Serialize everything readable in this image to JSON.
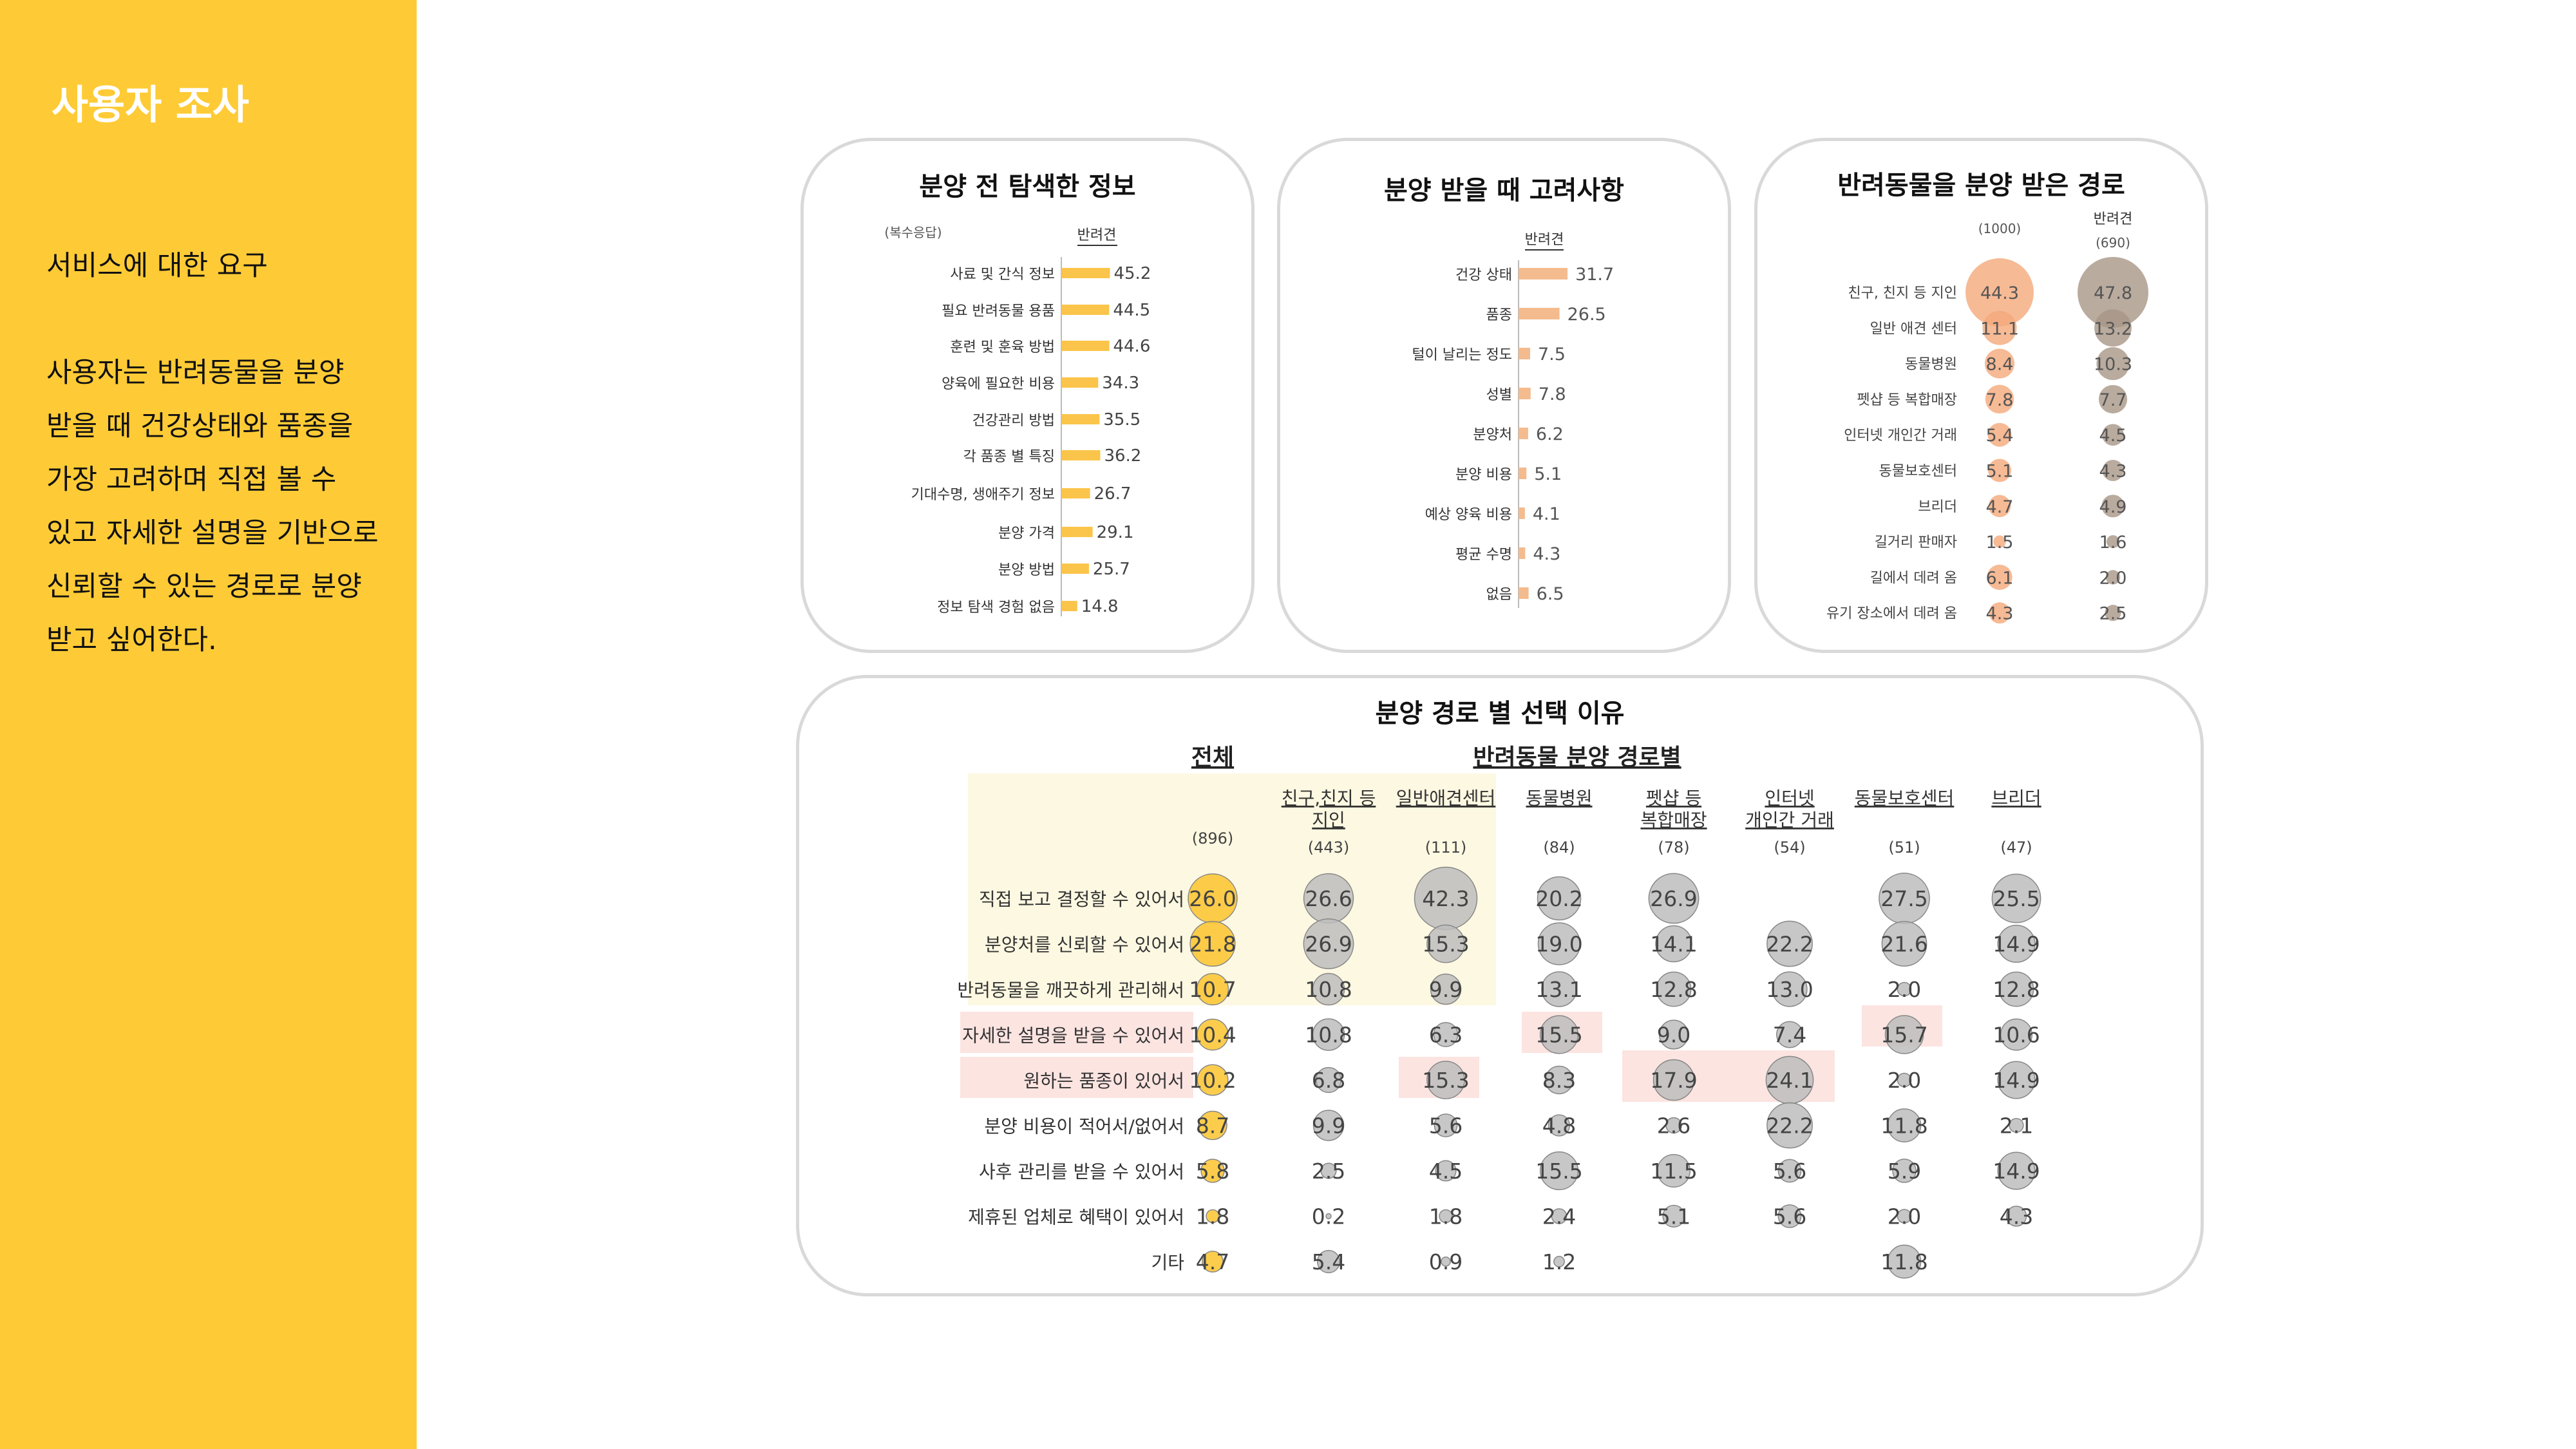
{
  "sidebar": {
    "title": "사용자 조사",
    "subtitle": "서비스에 대한 요구",
    "body_lines": [
      "사용자는 반려동물을 분양",
      "받을 때 건강상태와 품종을",
      "가장 고려하며 직접 볼 수",
      "있고 자세한 설명을 기반으로",
      "신뢰할 수 있는 경로로 분양",
      "받고 싶어한다."
    ]
  },
  "colors": {
    "sidebar_bg": "#FECB36",
    "bar_yellow": "#FBC44A",
    "bar_peach": "#F4BB8E",
    "bubble_peach": "#F4A97A",
    "bubble_brown": "#A79686",
    "bubble_yellow": "#FBC42E",
    "bubble_gray": "#BDBDBD",
    "highlight_yellow": "#FDF8E1",
    "highlight_pink": "#FCE4E1"
  },
  "chart_data": [
    {
      "type": "bar",
      "title": "분양 전 탐색한 정보",
      "note": "(복수응답)",
      "series_label": "반려견",
      "categories": [
        "사료 및 간식 정보",
        "필요 반려동물 용품",
        "훈련 및 훈육 방법",
        "양육에 필요한 비용",
        "건강관리 방법",
        "각 품종 별 특징",
        "기대수명, 생애주기 정보",
        "분양 가격",
        "분양 방법",
        "정보 탐색 경험 없음"
      ],
      "values": [
        45.2,
        44.5,
        44.6,
        34.3,
        35.5,
        36.2,
        26.7,
        29.1,
        25.7,
        14.8
      ],
      "value_labels": [
        "45.2",
        "44.5",
        "44.6",
        "34.3",
        "35.5",
        "36.2",
        "26.7",
        "29.1",
        "25.7",
        "14.8"
      ]
    },
    {
      "type": "bar",
      "title": "분양 받을 때 고려사항",
      "series_label": "반려견",
      "categories": [
        "건강 상태",
        "품종",
        "털이 날리는 정도",
        "성별",
        "분양처",
        "분양 비용",
        "예상 양육 비용",
        "평균 수명",
        "없음"
      ],
      "values": [
        31.7,
        26.5,
        7.5,
        7.8,
        6.2,
        5.1,
        4.1,
        4.3,
        6.5
      ],
      "value_labels": [
        "31.7",
        "26.5",
        "7.5",
        "7.8",
        "6.2",
        "5.1",
        "4.1",
        "4.3",
        "6.5"
      ]
    },
    {
      "type": "scatter",
      "title": "반려동물을 분양 받은 경로",
      "columns": [
        {
          "header": "",
          "n": "(1000)"
        },
        {
          "header": "반려견",
          "n": "(690)"
        }
      ],
      "rows": [
        "친구, 친지 등 지인",
        "일반 애견 센터",
        "동물병원",
        "펫샵 등 복합매장",
        "인터넷 개인간 거래",
        "동물보호센터",
        "브리더",
        "길거리 판매자",
        "길에서 데려 옴",
        "유기 장소에서 데려 옴"
      ],
      "values": [
        [
          44.3,
          47.8
        ],
        [
          11.1,
          13.2
        ],
        [
          8.4,
          10.3
        ],
        [
          7.8,
          7.7
        ],
        [
          5.4,
          4.5
        ],
        [
          5.1,
          4.3
        ],
        [
          4.7,
          4.9
        ],
        [
          1.5,
          1.6
        ],
        [
          6.1,
          2.0
        ],
        [
          4.3,
          2.5
        ]
      ],
      "value_labels": [
        [
          "44.3",
          "47.8"
        ],
        [
          "11.1",
          "13.2"
        ],
        [
          "8.4",
          "10.3"
        ],
        [
          "7.8",
          "7.7"
        ],
        [
          "5.4",
          "4.5"
        ],
        [
          "5.1",
          "4.3"
        ],
        [
          "4.7",
          "4.9"
        ],
        [
          "1.5",
          "1.6"
        ],
        [
          "6.1",
          "2.0"
        ],
        [
          "4.3",
          "2.5"
        ]
      ]
    },
    {
      "type": "scatter",
      "title": "분양 경로 별 선택 이유",
      "group_labels": {
        "total": "전체",
        "by_route": "반려동물 분양 경로별"
      },
      "columns": [
        {
          "lines": [
            ""
          ],
          "n": "(896)"
        },
        {
          "lines": [
            "친구,친지 등",
            "지인"
          ],
          "n": "(443)"
        },
        {
          "lines": [
            "일반애견센터"
          ],
          "n": "(111)"
        },
        {
          "lines": [
            "동물병원"
          ],
          "n": "(84)"
        },
        {
          "lines": [
            "펫샵 등",
            "복합매장"
          ],
          "n": "(78)"
        },
        {
          "lines": [
            "인터넷",
            "개인간 거래"
          ],
          "n": "(54)"
        },
        {
          "lines": [
            "동물보호센터"
          ],
          "n": "(51)"
        },
        {
          "lines": [
            "브리더"
          ],
          "n": "(47)"
        }
      ],
      "rows": [
        "직접 보고 결정할 수 있어서",
        "분양처를 신뢰할 수 있어서",
        "반려동물을 깨끗하게 관리해서",
        "자세한 설명을 받을 수 있어서",
        "원하는 품종이 있어서",
        "분양 비용이 적어서/없어서",
        "사후 관리를 받을 수 있어서",
        "제휴된 업체로 혜택이 있어서",
        "기타"
      ],
      "values": [
        [
          26.0,
          26.6,
          42.3,
          20.2,
          26.9,
          null,
          27.5,
          25.5
        ],
        [
          21.8,
          26.9,
          15.3,
          19.0,
          14.1,
          22.2,
          21.6,
          14.9
        ],
        [
          10.7,
          10.8,
          9.9,
          13.1,
          12.8,
          13.0,
          2.0,
          12.8
        ],
        [
          10.4,
          10.8,
          6.3,
          15.5,
          9.0,
          7.4,
          15.7,
          10.6
        ],
        [
          10.2,
          6.8,
          15.3,
          8.3,
          17.9,
          24.1,
          2.0,
          14.9
        ],
        [
          8.7,
          9.9,
          5.6,
          4.8,
          2.6,
          22.2,
          11.8,
          2.1
        ],
        [
          5.8,
          2.5,
          4.5,
          15.5,
          11.5,
          5.6,
          5.9,
          14.9
        ],
        [
          1.8,
          0.2,
          1.8,
          2.4,
          5.1,
          5.6,
          2.0,
          4.3
        ],
        [
          4.7,
          5.4,
          0.9,
          1.2,
          null,
          null,
          11.8,
          null
        ]
      ],
      "value_labels": [
        [
          "26.0",
          "26.6",
          "42.3",
          "20.2",
          "26.9",
          "",
          "27.5",
          "25.5"
        ],
        [
          "21.8",
          "26.9",
          "15.3",
          "19.0",
          "14.1",
          "22.2",
          "21.6",
          "14.9"
        ],
        [
          "10.7",
          "10.8",
          "9.9",
          "13.1",
          "12.8",
          "13.0",
          "2.0",
          "12.8"
        ],
        [
          "10.4",
          "10.8",
          "6.3",
          "15.5",
          "9.0",
          "7.4",
          "15.7",
          "10.6"
        ],
        [
          "10.2",
          "6.8",
          "15.3",
          "8.3",
          "17.9",
          "24.1",
          "2.0",
          "14.9"
        ],
        [
          "8.7",
          "9.9",
          "5.6",
          "4.8",
          "2.6",
          "22.2",
          "11.8",
          "2.1"
        ],
        [
          "5.8",
          "2.5",
          "4.5",
          "15.5",
          "11.5",
          "5.6",
          "5.9",
          "14.9"
        ],
        [
          "1.8",
          "0.2",
          "1.8",
          "2.4",
          "5.1",
          "5.6",
          "2.0",
          "4.3"
        ],
        [
          "4.7",
          "5.4",
          "0.9",
          "1.2",
          "",
          "",
          "11.8",
          ""
        ]
      ]
    }
  ]
}
